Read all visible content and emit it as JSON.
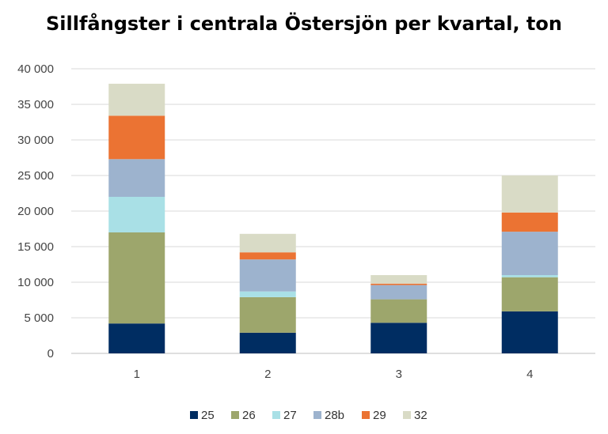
{
  "chart_data": {
    "type": "bar",
    "stacked": true,
    "title": "Sillfångster i centrala Östersjön per kvartal, ton",
    "xlabel": "",
    "ylabel": "",
    "categories": [
      "1",
      "2",
      "3",
      "4"
    ],
    "ylim": [
      0,
      40000
    ],
    "yticks": [
      0,
      5000,
      10000,
      15000,
      20000,
      25000,
      30000,
      35000,
      40000
    ],
    "ytick_labels": [
      "0",
      "5 000",
      "10 000",
      "15 000",
      "20 000",
      "25 000",
      "30 000",
      "35 000",
      "40 000"
    ],
    "grid": true,
    "legend_position": "bottom",
    "series": [
      {
        "name": "25",
        "color": "#002D62",
        "values": [
          4200,
          2900,
          4300,
          5900
        ]
      },
      {
        "name": "26",
        "color": "#9DA66C",
        "values": [
          12800,
          5000,
          3300,
          4800
        ]
      },
      {
        "name": "27",
        "color": "#A9E0E6",
        "values": [
          5000,
          800,
          0,
          300
        ]
      },
      {
        "name": "28b",
        "color": "#9DB3CE",
        "values": [
          5300,
          4500,
          2000,
          6100
        ]
      },
      {
        "name": "29",
        "color": "#EB7333",
        "values": [
          6100,
          1000,
          200,
          2700
        ]
      },
      {
        "name": "32",
        "color": "#D9DBC6",
        "values": [
          4500,
          2600,
          1200,
          5200
        ]
      }
    ]
  }
}
